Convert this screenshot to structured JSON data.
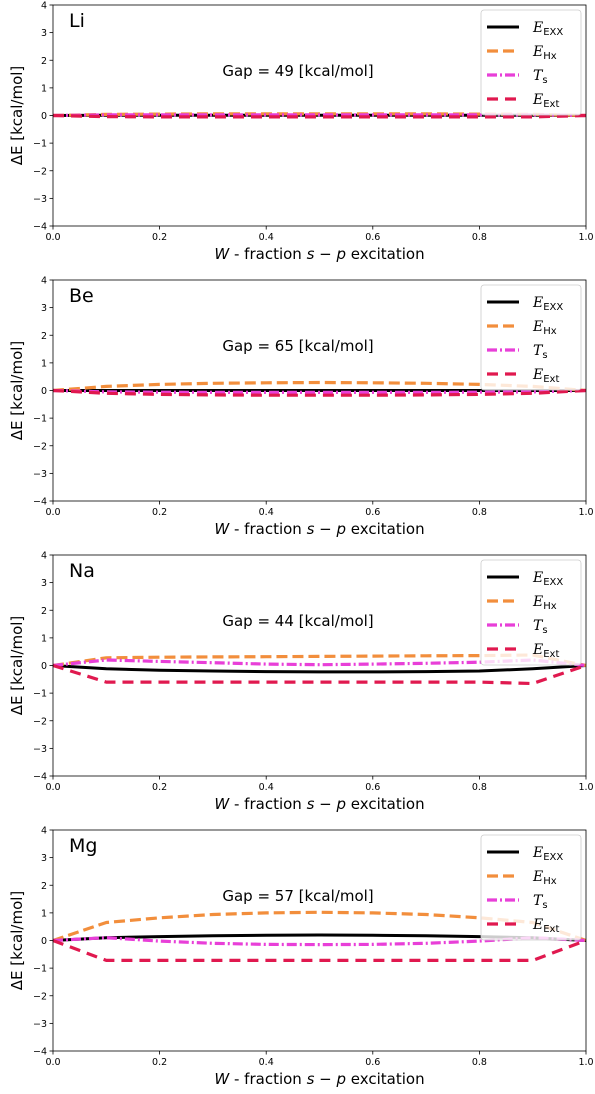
{
  "chart_data": [
    {
      "type": "line",
      "panel_label": "Li",
      "annotation": "Gap = 49 [kcal/mol]",
      "xlabel_italic": "W",
      "xlabel_text": " - fraction ",
      "xlabel_math": "s − p",
      "xlabel_end": " excitation",
      "ylabel": "ΔE [kcal/mol]",
      "xlim": [
        0,
        1
      ],
      "ylim": [
        -4,
        4
      ],
      "x": [
        0,
        0.1,
        0.2,
        0.3,
        0.4,
        0.5,
        0.6,
        0.7,
        0.8,
        0.9,
        1.0
      ],
      "series": [
        {
          "name": "EXX",
          "symbol": "E",
          "values": [
            0,
            0.01,
            0.01,
            0.01,
            0.01,
            0.01,
            0.01,
            0.01,
            0.01,
            0.01,
            0
          ]
        },
        {
          "name": "Hx",
          "symbol": "E",
          "values": [
            0,
            0.04,
            0.05,
            0.06,
            0.06,
            0.06,
            0.06,
            0.06,
            0.05,
            0.04,
            0
          ]
        },
        {
          "name": "s",
          "symbol": "T",
          "values": [
            0,
            0.02,
            0.02,
            0.02,
            0.02,
            0.02,
            0.02,
            0.02,
            0.02,
            0.02,
            0
          ]
        },
        {
          "name": "Ext",
          "symbol": "E",
          "values": [
            0,
            -0.04,
            -0.05,
            -0.05,
            -0.05,
            -0.05,
            -0.05,
            -0.05,
            -0.05,
            -0.05,
            0
          ]
        }
      ]
    },
    {
      "type": "line",
      "panel_label": "Be",
      "annotation": "Gap = 65 [kcal/mol]",
      "xlabel_italic": "W",
      "xlabel_text": " - fraction ",
      "xlabel_math": "s − p",
      "xlabel_end": " excitation",
      "ylabel": "ΔE [kcal/mol]",
      "xlim": [
        0,
        1
      ],
      "ylim": [
        -4,
        4
      ],
      "x": [
        0,
        0.1,
        0.2,
        0.3,
        0.4,
        0.5,
        0.6,
        0.7,
        0.8,
        0.9,
        1.0
      ],
      "series": [
        {
          "name": "EXX",
          "symbol": "E",
          "values": [
            0,
            0.0,
            0.0,
            0.0,
            0.0,
            0.0,
            0.0,
            0.0,
            0.0,
            0.0,
            0
          ]
        },
        {
          "name": "Hx",
          "symbol": "E",
          "values": [
            0,
            0.15,
            0.22,
            0.26,
            0.28,
            0.29,
            0.28,
            0.26,
            0.22,
            0.15,
            0
          ]
        },
        {
          "name": "s",
          "symbol": "T",
          "values": [
            0,
            -0.05,
            -0.06,
            -0.07,
            -0.07,
            -0.07,
            -0.07,
            -0.07,
            -0.06,
            -0.05,
            0
          ]
        },
        {
          "name": "Ext",
          "symbol": "E",
          "values": [
            0,
            -0.1,
            -0.14,
            -0.16,
            -0.17,
            -0.17,
            -0.17,
            -0.16,
            -0.14,
            -0.1,
            0
          ]
        }
      ]
    },
    {
      "type": "line",
      "panel_label": "Na",
      "annotation": "Gap = 44 [kcal/mol]",
      "xlabel_italic": "W",
      "xlabel_text": " - fraction ",
      "xlabel_math": "s − p",
      "xlabel_end": " excitation",
      "ylabel": "ΔE [kcal/mol]",
      "xlim": [
        0,
        1
      ],
      "ylim": [
        -4,
        4
      ],
      "x": [
        0,
        0.1,
        0.2,
        0.3,
        0.4,
        0.5,
        0.6,
        0.7,
        0.8,
        0.9,
        1.0
      ],
      "series": [
        {
          "name": "EXX",
          "symbol": "E",
          "values": [
            0,
            -0.12,
            -0.17,
            -0.2,
            -0.22,
            -0.23,
            -0.23,
            -0.22,
            -0.2,
            -0.12,
            0
          ]
        },
        {
          "name": "Hx",
          "symbol": "E",
          "values": [
            0,
            0.28,
            0.3,
            0.31,
            0.32,
            0.33,
            0.34,
            0.35,
            0.36,
            0.38,
            0
          ]
        },
        {
          "name": "s",
          "symbol": "T",
          "values": [
            0,
            0.2,
            0.15,
            0.1,
            0.05,
            0.03,
            0.05,
            0.08,
            0.12,
            0.2,
            0
          ]
        },
        {
          "name": "Ext",
          "symbol": "E",
          "values": [
            0,
            -0.6,
            -0.6,
            -0.6,
            -0.6,
            -0.6,
            -0.6,
            -0.6,
            -0.6,
            -0.65,
            0
          ]
        }
      ]
    },
    {
      "type": "line",
      "panel_label": "Mg",
      "annotation": "Gap = 57 [kcal/mol]",
      "xlabel_italic": "W",
      "xlabel_text": " - fraction ",
      "xlabel_math": "s − p",
      "xlabel_end": " excitation",
      "ylabel": "ΔE [kcal/mol]",
      "xlim": [
        0,
        1
      ],
      "ylim": [
        -4,
        4
      ],
      "x": [
        0,
        0.1,
        0.2,
        0.3,
        0.4,
        0.5,
        0.6,
        0.7,
        0.8,
        0.9,
        1.0
      ],
      "series": [
        {
          "name": "EXX",
          "symbol": "E",
          "values": [
            0,
            0.1,
            0.14,
            0.17,
            0.19,
            0.2,
            0.19,
            0.17,
            0.14,
            0.1,
            0
          ]
        },
        {
          "name": "Hx",
          "symbol": "E",
          "values": [
            0,
            0.65,
            0.82,
            0.94,
            1.0,
            1.02,
            1.0,
            0.94,
            0.82,
            0.65,
            0
          ]
        },
        {
          "name": "s",
          "symbol": "T",
          "values": [
            0,
            0.1,
            -0.02,
            -0.1,
            -0.14,
            -0.15,
            -0.14,
            -0.1,
            -0.02,
            0.1,
            0
          ]
        },
        {
          "name": "Ext",
          "symbol": "E",
          "values": [
            0,
            -0.72,
            -0.72,
            -0.72,
            -0.72,
            -0.72,
            -0.72,
            -0.72,
            -0.72,
            -0.72,
            0
          ]
        }
      ]
    }
  ],
  "series_style": [
    {
      "color": "#000000",
      "dash": ""
    },
    {
      "color": "#f28e3c",
      "dash": "11,5"
    },
    {
      "color": "#e83fd8",
      "dash": "10,3,2,3"
    },
    {
      "color": "#e0194f",
      "dash": "11,7"
    }
  ],
  "xticks": [
    "0.0",
    "0.2",
    "0.4",
    "0.6",
    "0.8",
    "1.0"
  ],
  "yticks": [
    "−4",
    "−3",
    "−2",
    "−1",
    "0",
    "1",
    "2",
    "3",
    "4"
  ]
}
